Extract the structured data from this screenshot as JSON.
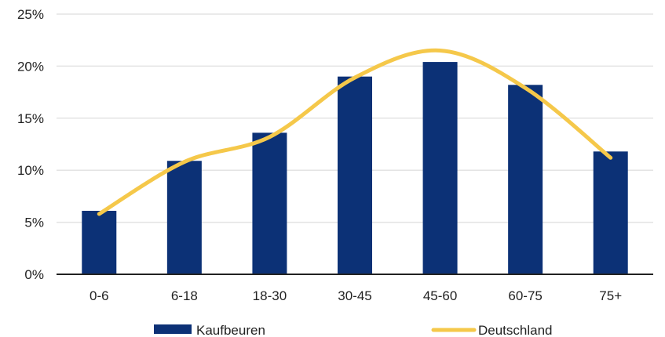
{
  "chart_data": {
    "type": "bar",
    "categories": [
      "0-6",
      "6-18",
      "18-30",
      "30-45",
      "45-60",
      "60-75",
      "75+"
    ],
    "series": [
      {
        "name": "Kaufbeuren",
        "type": "bar",
        "values": [
          6.1,
          10.9,
          13.6,
          19.0,
          20.4,
          18.2,
          11.8
        ]
      },
      {
        "name": "Deutschland",
        "type": "line",
        "smooth": true,
        "values": [
          5.8,
          10.8,
          13.2,
          18.9,
          21.5,
          17.9,
          11.2
        ]
      }
    ],
    "ylim": [
      0,
      25
    ],
    "yticks": [
      "0%",
      "5%",
      "10%",
      "15%",
      "20%",
      "25%"
    ],
    "grid": true,
    "legend": "bottom",
    "colors": {
      "bar": "#0c3176",
      "line": "#f5c84a",
      "grid": "#e3e3e3",
      "axis": "#222222"
    }
  }
}
